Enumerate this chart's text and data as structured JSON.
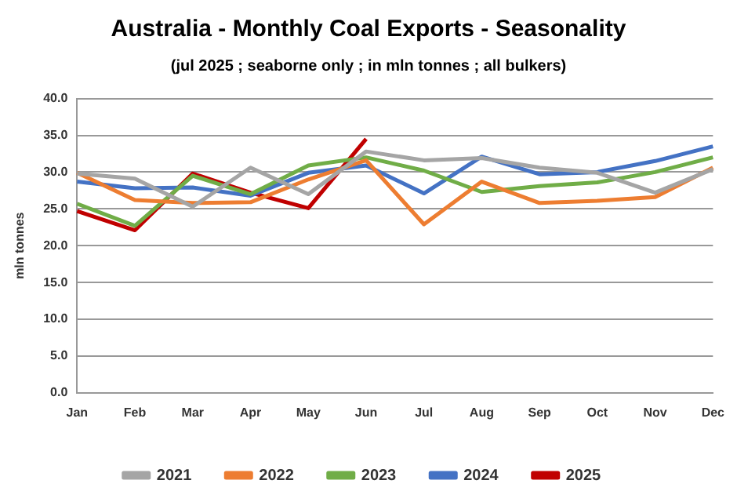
{
  "chart_data": {
    "type": "line",
    "title": "Australia - Monthly Coal Exports - Seasonality",
    "subtitle": "(jul 2025 ; seaborne only ; in mln tonnes ; all bulkers)",
    "ylabel": "mln tonnes",
    "categories": [
      "Jan",
      "Feb",
      "Mar",
      "Apr",
      "May",
      "Jun",
      "Jul",
      "Aug",
      "Sep",
      "Oct",
      "Nov",
      "Dec"
    ],
    "series": [
      {
        "name": "2021",
        "color": "#a5a5a5",
        "values": [
          29.8,
          29.1,
          25.3,
          30.6,
          27.0,
          32.8,
          31.6,
          31.9,
          30.6,
          29.9,
          27.2,
          30.4
        ]
      },
      {
        "name": "2022",
        "color": "#ed7d31",
        "values": [
          29.9,
          26.2,
          25.8,
          25.9,
          29.0,
          31.6,
          22.9,
          28.7,
          25.8,
          26.1,
          26.6,
          30.6
        ]
      },
      {
        "name": "2023",
        "color": "#70ad47",
        "values": [
          25.7,
          22.7,
          29.5,
          27.0,
          30.9,
          32.0,
          30.2,
          27.3,
          28.1,
          28.6,
          30.0,
          32.0
        ]
      },
      {
        "name": "2024",
        "color": "#4472c4",
        "values": [
          28.7,
          27.8,
          27.9,
          26.8,
          29.9,
          30.9,
          27.1,
          32.1,
          29.7,
          30.0,
          31.5,
          33.5
        ]
      },
      {
        "name": "2025",
        "color": "#c00000",
        "values": [
          24.7,
          22.1,
          29.8,
          27.2,
          25.1,
          34.5,
          null,
          null,
          null,
          null,
          null,
          null
        ]
      }
    ],
    "ylim": [
      0,
      40
    ],
    "yticks": [
      {
        "value": 0,
        "label": "0.0"
      },
      {
        "value": 5,
        "label": "5.0"
      },
      {
        "value": 10,
        "label": "10.0"
      },
      {
        "value": 15,
        "label": "15.0"
      },
      {
        "value": 20,
        "label": "20.0"
      },
      {
        "value": 25,
        "label": "25.0"
      },
      {
        "value": 30,
        "label": "30.0"
      },
      {
        "value": 35,
        "label": "35.0"
      },
      {
        "value": 40,
        "label": "40.0"
      }
    ],
    "grid": "y",
    "legend": "bottom",
    "marker": "none",
    "line_style": "solid"
  }
}
